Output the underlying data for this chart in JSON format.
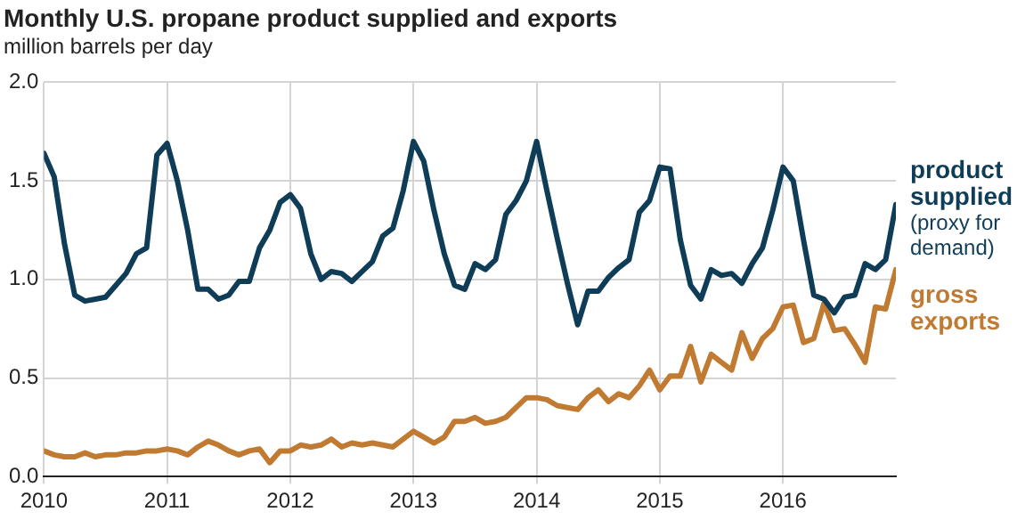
{
  "chart_data": {
    "type": "line",
    "title": "Monthly U.S. propane product supplied and exports",
    "subtitle": "million barrels per day",
    "x": [
      "2010-01",
      "2010-02",
      "2010-03",
      "2010-04",
      "2010-05",
      "2010-06",
      "2010-07",
      "2010-08",
      "2010-09",
      "2010-10",
      "2010-11",
      "2010-12",
      "2011-01",
      "2011-02",
      "2011-03",
      "2011-04",
      "2011-05",
      "2011-06",
      "2011-07",
      "2011-08",
      "2011-09",
      "2011-10",
      "2011-11",
      "2011-12",
      "2012-01",
      "2012-02",
      "2012-03",
      "2012-04",
      "2012-05",
      "2012-06",
      "2012-07",
      "2012-08",
      "2012-09",
      "2012-10",
      "2012-11",
      "2012-12",
      "2013-01",
      "2013-02",
      "2013-03",
      "2013-04",
      "2013-05",
      "2013-06",
      "2013-07",
      "2013-08",
      "2013-09",
      "2013-10",
      "2013-11",
      "2013-12",
      "2014-01",
      "2014-02",
      "2014-03",
      "2014-04",
      "2014-05",
      "2014-06",
      "2014-07",
      "2014-08",
      "2014-09",
      "2014-10",
      "2014-11",
      "2014-12",
      "2015-01",
      "2015-02",
      "2015-03",
      "2015-04",
      "2015-05",
      "2015-06",
      "2015-07",
      "2015-08",
      "2015-09",
      "2015-10",
      "2015-11",
      "2015-12",
      "2016-01",
      "2016-02",
      "2016-03",
      "2016-04",
      "2016-05",
      "2016-06",
      "2016-07",
      "2016-08",
      "2016-09",
      "2016-10",
      "2016-11",
      "2016-12"
    ],
    "series": [
      {
        "name": "product supplied",
        "color": "#0f3d58",
        "values": [
          1.64,
          1.52,
          1.18,
          0.92,
          0.89,
          0.9,
          0.91,
          0.97,
          1.03,
          1.13,
          1.16,
          1.63,
          1.69,
          1.5,
          1.25,
          0.95,
          0.95,
          0.9,
          0.92,
          0.99,
          0.99,
          1.16,
          1.25,
          1.39,
          1.43,
          1.36,
          1.13,
          1.0,
          1.04,
          1.03,
          0.99,
          1.04,
          1.09,
          1.22,
          1.26,
          1.45,
          1.7,
          1.6,
          1.35,
          1.13,
          0.97,
          0.95,
          1.08,
          1.05,
          1.1,
          1.33,
          1.4,
          1.5,
          1.7,
          1.45,
          1.21,
          0.98,
          0.77,
          0.94,
          0.94,
          1.01,
          1.06,
          1.1,
          1.34,
          1.4,
          1.57,
          1.56,
          1.2,
          0.97,
          0.9,
          1.05,
          1.02,
          1.03,
          0.98,
          1.08,
          1.16,
          1.35,
          1.57,
          1.5,
          1.2,
          0.92,
          0.9,
          0.83,
          0.91,
          0.92,
          1.08,
          1.05,
          1.1,
          1.38
        ]
      },
      {
        "name": "gross exports",
        "color": "#c17a31",
        "values": [
          0.13,
          0.11,
          0.1,
          0.1,
          0.12,
          0.1,
          0.11,
          0.11,
          0.12,
          0.12,
          0.13,
          0.13,
          0.14,
          0.13,
          0.11,
          0.15,
          0.18,
          0.16,
          0.13,
          0.11,
          0.13,
          0.14,
          0.07,
          0.13,
          0.13,
          0.16,
          0.15,
          0.16,
          0.19,
          0.15,
          0.17,
          0.16,
          0.17,
          0.16,
          0.15,
          0.19,
          0.23,
          0.2,
          0.17,
          0.2,
          0.28,
          0.28,
          0.3,
          0.27,
          0.28,
          0.3,
          0.35,
          0.4,
          0.4,
          0.39,
          0.36,
          0.35,
          0.34,
          0.4,
          0.44,
          0.38,
          0.42,
          0.4,
          0.46,
          0.54,
          0.44,
          0.51,
          0.51,
          0.66,
          0.48,
          0.62,
          0.58,
          0.54,
          0.73,
          0.6,
          0.7,
          0.75,
          0.86,
          0.87,
          0.68,
          0.7,
          0.88,
          0.74,
          0.75,
          0.67,
          0.58,
          0.86,
          0.85,
          1.05
        ]
      }
    ],
    "annotations": [
      "(proxy for demand)"
    ],
    "xlim": [
      "2010-01",
      "2016-12"
    ],
    "xticks": [
      "2010",
      "2011",
      "2012",
      "2013",
      "2014",
      "2015",
      "2016"
    ],
    "ylim": [
      0,
      2
    ],
    "yticks": [
      {
        "value": 0,
        "label": "0.0"
      },
      {
        "value": 0.5,
        "label": "0.5"
      },
      {
        "value": 1,
        "label": "1.0"
      },
      {
        "value": 1.5,
        "label": "1.5"
      },
      {
        "value": 2,
        "label": "2.0"
      }
    ],
    "grid": true,
    "legend": false,
    "marker": "none",
    "line_style": "solid"
  }
}
